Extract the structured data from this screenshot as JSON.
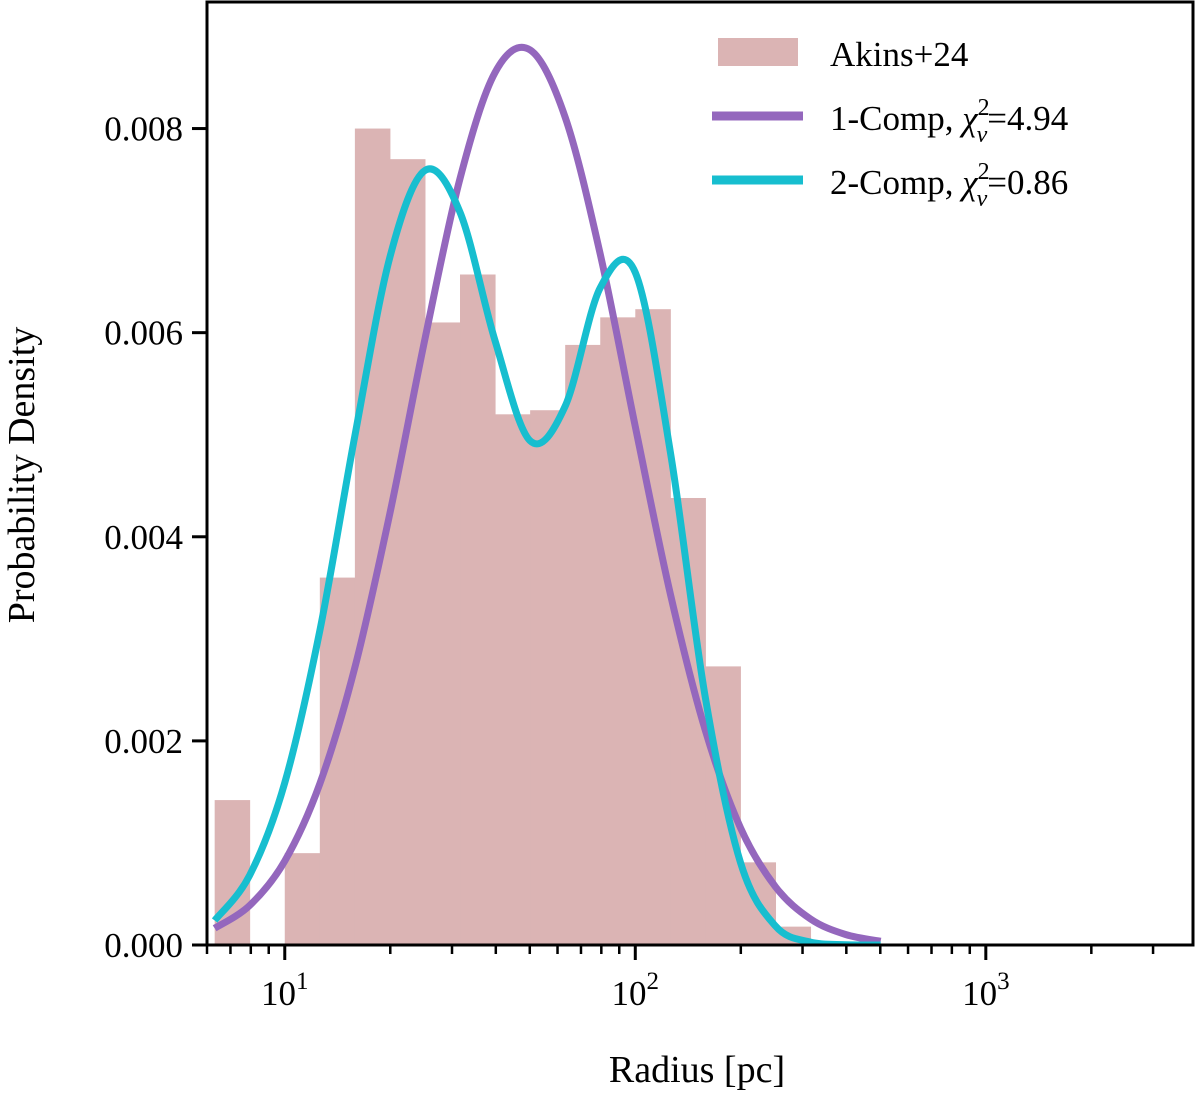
{
  "chart_data": {
    "type": "bar",
    "title": "",
    "xlabel": "Radius [pc]",
    "ylabel": "Probability Density",
    "xscale": "log",
    "xlim": [
      6.0,
      3900
    ],
    "ylim": [
      0,
      0.00924
    ],
    "grid": false,
    "legend_placement": "top-right",
    "x_ticks": [
      {
        "value": 10,
        "base": "10",
        "exp": "1"
      },
      {
        "value": 100,
        "base": "10",
        "exp": "2"
      },
      {
        "value": 1000,
        "base": "10",
        "exp": "3"
      }
    ],
    "y_ticks": [
      {
        "value": 0,
        "label": "0.000"
      },
      {
        "value": 0.002,
        "label": "0.002"
      },
      {
        "value": 0.004,
        "label": "0.004"
      },
      {
        "value": 0.006,
        "label": "0.006"
      },
      {
        "value": 0.008,
        "label": "0.008"
      }
    ],
    "histogram": {
      "name": "Akins+24",
      "color": "#dbb4b4",
      "bin_edges": [
        6.31,
        7.94,
        10,
        12.59,
        15.85,
        19.95,
        25.12,
        31.62,
        39.81,
        50.12,
        63.1,
        79.43,
        100,
        125.9,
        158.5,
        199.5,
        251.2,
        316.2
      ],
      "values": [
        0.00142,
        0,
        0.0009,
        0.0036,
        0.008,
        0.0077,
        0.0061,
        0.00657,
        0.0052,
        0.00524,
        0.00588,
        0.00615,
        0.00623,
        0.00438,
        0.00273,
        0.00081,
        0.00018
      ]
    },
    "x": [
      6.31,
      7.94,
      10,
      12.59,
      15.85,
      19.95,
      25.12,
      31.62,
      39.81,
      50.12,
      63.1,
      79.43,
      100,
      125.9,
      158.5,
      199.5,
      251.2,
      316.2,
      398.1,
      501.2
    ],
    "series": [
      {
        "name": "1-Comp",
        "legend_suffix": "=4.94",
        "color": "#9467bd",
        "values": [
          0.000164,
          0.000387,
          0.000823,
          0.00158,
          0.00272,
          0.00423,
          0.00594,
          0.00751,
          0.00855,
          0.00877,
          0.00811,
          0.00677,
          0.00508,
          0.00344,
          0.0021,
          0.00115,
          0.00057,
          0.000255,
          0.000103,
          3.7e-05
        ]
      },
      {
        "name": "2-Comp",
        "legend_suffix": "=0.86",
        "color": "#17becf",
        "values": [
          0.00024,
          0.000683,
          0.00159,
          0.00308,
          0.00499,
          0.00674,
          0.00759,
          0.00718,
          0.00592,
          0.00494,
          0.00528,
          0.00644,
          0.00659,
          0.00483,
          0.00242,
          0.00081,
          0.000185,
          2.8e-05,
          3e-06,
          0.0
        ]
      }
    ],
    "legend": {
      "entries": [
        {
          "label": "Akins+24"
        },
        {
          "label": "1-Comp,",
          "chi": "χ",
          "sup": "2",
          "sub": "ν",
          "value": "=4.94"
        },
        {
          "label": "2-Comp,",
          "chi": "χ",
          "sup": "2",
          "sub": "ν",
          "value": "=0.86"
        }
      ]
    }
  }
}
